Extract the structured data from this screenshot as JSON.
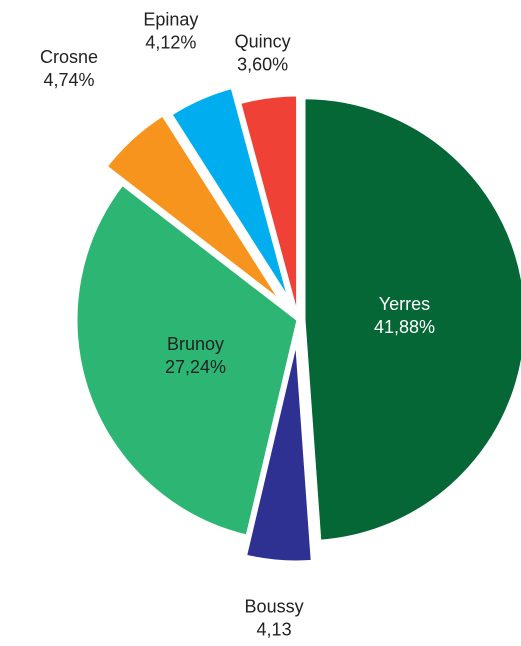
{
  "chart_data": {
    "type": "pie",
    "categories": [
      "Yerres",
      "Boussy",
      "Brunoy",
      "Crosne",
      "Epinay",
      "Quincy"
    ],
    "values": [
      41.88,
      4.13,
      27.24,
      4.74,
      4.12,
      3.6
    ],
    "value_labels": [
      "41,88%",
      "4,13",
      "27,24%",
      "4,74%",
      "4,12%",
      "3,60%"
    ],
    "colors": [
      "#046735",
      "#2e3192",
      "#2db673",
      "#f7941d",
      "#00aeef",
      "#ef4136"
    ]
  }
}
